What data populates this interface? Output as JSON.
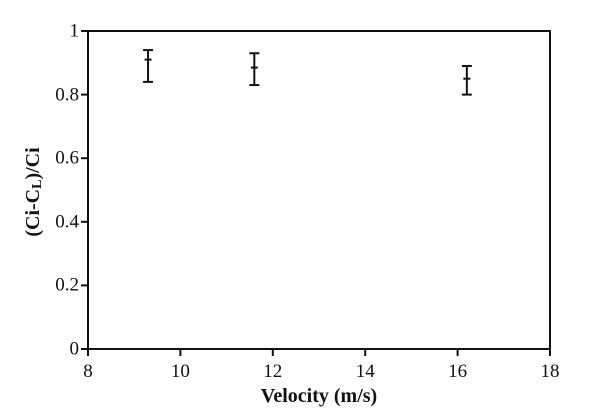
{
  "chart_data": {
    "type": "scatter",
    "xlabel": "Velocity (m/s)",
    "ylabel": "(Ci-CL)/Ci",
    "ylabel_parts": [
      {
        "text": "(Ci-C",
        "sub": false
      },
      {
        "text": "L",
        "sub": true
      },
      {
        "text": ")/Ci",
        "sub": false
      }
    ],
    "xlim": [
      8,
      18
    ],
    "ylim": [
      0,
      1
    ],
    "xticks": [
      8,
      10,
      12,
      14,
      16,
      18
    ],
    "xtick_labels": [
      "8",
      "10",
      "12",
      "14",
      "16",
      "18"
    ],
    "yticks": [
      0,
      0.2,
      0.4,
      0.6,
      0.8,
      1
    ],
    "ytick_labels": [
      "0",
      "0.2",
      "0.4",
      "0.6",
      "0.8",
      "1"
    ],
    "grid": false,
    "legend": "none",
    "frame": "box",
    "marker": "horizontal-dash",
    "line_color": "#111111",
    "series": [
      {
        "points": [
          {
            "x": 9.3,
            "y": 0.91,
            "y_upper": 0.94,
            "y_lower": 0.84
          },
          {
            "x": 11.6,
            "y": 0.885,
            "y_upper": 0.93,
            "y_lower": 0.83
          },
          {
            "x": 16.2,
            "y": 0.85,
            "y_upper": 0.89,
            "y_lower": 0.8
          }
        ]
      }
    ]
  }
}
